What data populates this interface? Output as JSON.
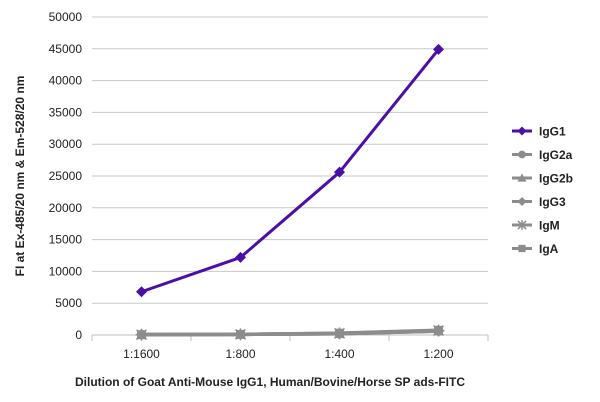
{
  "chart_data": {
    "type": "line",
    "categories": [
      "1:1600",
      "1:800",
      "1:400",
      "1:200"
    ],
    "ylim": [
      0,
      50000
    ],
    "yticks": [
      0,
      5000,
      10000,
      15000,
      20000,
      25000,
      30000,
      35000,
      40000,
      45000,
      50000
    ],
    "xlabel": "Dilution of Goat Anti-Mouse IgG1, Human/Bovine/Horse SP ads-FITC",
    "ylabel": "FI at Ex-485/20 nm & Em-528/20 nm",
    "grid": "horizontal",
    "legend_position": "right",
    "series": [
      {
        "name": "IgG1",
        "marker": "diamond",
        "color": "#4b0ea6",
        "values": [
          6800,
          12200,
          25600,
          44900
        ]
      },
      {
        "name": "IgG2a",
        "marker": "circle",
        "color": "#8c8c8c",
        "values": [
          50,
          100,
          200,
          600
        ]
      },
      {
        "name": "IgG2b",
        "marker": "triangle",
        "color": "#8c8c8c",
        "values": [
          50,
          100,
          200,
          650
        ]
      },
      {
        "name": "IgG3",
        "marker": "diamond",
        "color": "#8c8c8c",
        "values": [
          50,
          100,
          200,
          600
        ]
      },
      {
        "name": "IgM",
        "marker": "star",
        "color": "#8c8c8c",
        "values": [
          50,
          100,
          250,
          700
        ]
      },
      {
        "name": "IgA",
        "marker": "square",
        "color": "#8c8c8c",
        "values": [
          50,
          100,
          300,
          750
        ]
      }
    ]
  }
}
